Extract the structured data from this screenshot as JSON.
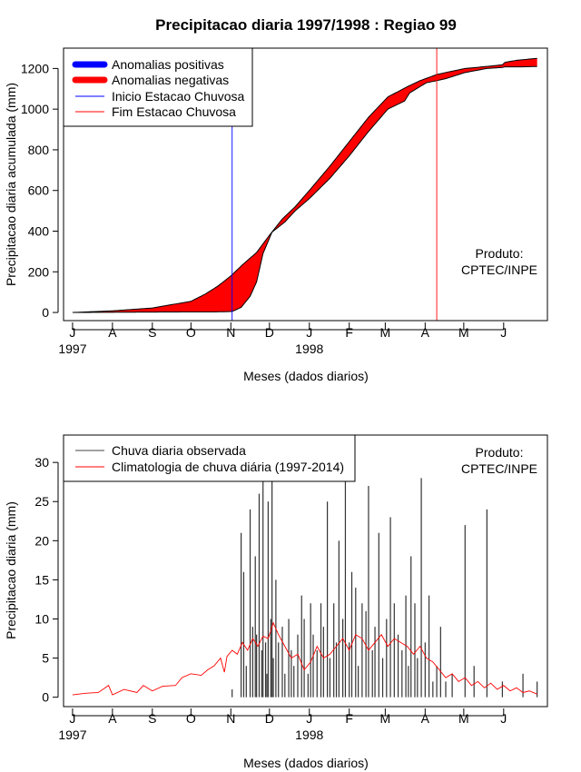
{
  "title": "Precipitacao diaria 1997/1998 : Regiao 99",
  "chart_data": [
    {
      "type": "area",
      "ylabel": "Precipitacao diaria acumulada (mm)",
      "xlabel": "Meses (dados diarios)",
      "x_ticks": [
        "J",
        "A",
        "S",
        "O",
        "N",
        "D",
        "J",
        "F",
        "M",
        "A",
        "M",
        "J"
      ],
      "year_labels": [
        {
          "label": "1997",
          "tick": 0
        },
        {
          "label": "1998",
          "tick": 6
        }
      ],
      "y_ticks": [
        0,
        200,
        400,
        600,
        800,
        1000,
        1200
      ],
      "ylim": [
        -40,
        1300
      ],
      "xlim_days": [
        -7,
        369
      ],
      "legend": [
        {
          "label": "Anomalias positivas",
          "color": "#0000ff",
          "style": "thick"
        },
        {
          "label": "Anomalias negativas",
          "color": "#ff0000",
          "style": "thick"
        },
        {
          "label": "Inicio Estacao Chuvosa",
          "color": "#0000ff",
          "style": "thin"
        },
        {
          "label": "Fim Estacao Chuvosa",
          "color": "#ff0000",
          "style": "thin"
        }
      ],
      "annotation": [
        "Produto:",
        "CPTEC/INPE"
      ],
      "season_start_day": 124,
      "season_end_day": 283,
      "observed_days": [
        0,
        31,
        62,
        92,
        110,
        120,
        124,
        131,
        138,
        143,
        148,
        155,
        165,
        173,
        184,
        200,
        215,
        230,
        245,
        258,
        262,
        275,
        283,
        290,
        305,
        322,
        334,
        336,
        350,
        361
      ],
      "observed_accum": [
        0,
        1,
        2,
        3,
        3,
        4,
        5,
        25,
        80,
        150,
        290,
        395,
        445,
        500,
        560,
        660,
        770,
        890,
        1000,
        1040,
        1080,
        1130,
        1140,
        1150,
        1180,
        1200,
        1205,
        1208,
        1208,
        1210
      ],
      "climatology_days": [
        0,
        31,
        62,
        92,
        103,
        113,
        123,
        133,
        143,
        153,
        163,
        173,
        184,
        200,
        215,
        230,
        245,
        260,
        270,
        283,
        290,
        305,
        322,
        334,
        336,
        345,
        361
      ],
      "climatology_accum": [
        0,
        8,
        22,
        55,
        90,
        130,
        180,
        240,
        295,
        380,
        460,
        520,
        600,
        720,
        840,
        960,
        1060,
        1110,
        1140,
        1170,
        1180,
        1200,
        1210,
        1218,
        1230,
        1240,
        1250
      ]
    },
    {
      "type": "line",
      "ylabel": "Precipitacao diaria (mm)",
      "xlabel": "Meses (dados diarios)",
      "x_ticks": [
        "J",
        "A",
        "S",
        "O",
        "N",
        "D",
        "J",
        "F",
        "M",
        "A",
        "M",
        "J"
      ],
      "year_labels": [
        {
          "label": "1997",
          "tick": 0
        },
        {
          "label": "1998",
          "tick": 6
        }
      ],
      "y_ticks": [
        0,
        5,
        10,
        15,
        20,
        25,
        30
      ],
      "ylim": [
        -1.2,
        33.5
      ],
      "xlim_days": [
        -7,
        369
      ],
      "annotation": [
        "Produto:",
        "CPTEC/INPE"
      ],
      "series": [
        {
          "name": "Chuva diaria observada",
          "color": "#000000",
          "style": "vertical-lines",
          "days": [
            124,
            131,
            133,
            135,
            138,
            140,
            142,
            143,
            145,
            147,
            148,
            150,
            151,
            152,
            154,
            155,
            156,
            158,
            160,
            163,
            165,
            168,
            170,
            172,
            175,
            178,
            180,
            183,
            185,
            187,
            190,
            193,
            195,
            198,
            200,
            203,
            205,
            207,
            210,
            212,
            215,
            217,
            220,
            222,
            225,
            228,
            230,
            233,
            235,
            238,
            241,
            244,
            247,
            250,
            253,
            256,
            259,
            261,
            263,
            266,
            268,
            271,
            274,
            277,
            280,
            283,
            286,
            290,
            295,
            305,
            312,
            322,
            334,
            350,
            361
          ],
          "values": [
            1,
            21,
            16,
            4,
            24,
            9,
            18,
            8,
            26,
            6,
            28,
            7,
            3,
            25,
            10,
            28,
            5,
            15,
            7,
            9,
            3,
            10,
            6,
            4,
            8,
            13,
            10,
            3,
            12,
            8,
            6,
            12,
            9,
            25,
            5,
            12,
            7,
            20,
            10,
            28,
            7,
            16,
            14,
            4,
            12,
            11,
            27,
            6,
            9,
            21,
            5,
            10,
            23,
            12,
            8,
            6,
            13,
            4,
            18,
            12,
            5,
            28,
            7,
            13,
            2,
            4,
            9,
            2,
            3,
            22,
            4,
            24,
            2,
            3,
            2
          ]
        },
        {
          "name": "Climatologia de chuva diária (1997-2014)",
          "color": "#ff0000",
          "style": "line",
          "days": [
            0,
            10,
            20,
            28,
            31,
            40,
            50,
            55,
            62,
            70,
            80,
            85,
            92,
            100,
            105,
            110,
            115,
            118,
            120,
            124,
            128,
            132,
            136,
            140,
            144,
            148,
            152,
            156,
            160,
            165,
            170,
            175,
            180,
            185,
            190,
            195,
            200,
            205,
            210,
            215,
            220,
            225,
            230,
            235,
            240,
            245,
            250,
            255,
            260,
            265,
            270,
            275,
            280,
            285,
            290,
            295,
            300,
            305,
            310,
            315,
            320,
            325,
            330,
            335,
            340,
            345,
            350,
            355,
            361
          ],
          "values": [
            0.3,
            0.5,
            0.6,
            1.5,
            0.3,
            1.0,
            0.6,
            1.5,
            0.8,
            1.4,
            1.5,
            2.5,
            3.0,
            2.8,
            3.5,
            4.0,
            5.0,
            3.2,
            5.2,
            6.0,
            5.5,
            7.0,
            6.0,
            7.5,
            6.5,
            7.8,
            7.5,
            9.5,
            8.0,
            6.5,
            5.0,
            5.5,
            3.5,
            4.5,
            6.5,
            5.0,
            5.5,
            6.5,
            7.5,
            6.0,
            8.0,
            7.5,
            6.0,
            7.0,
            8.0,
            6.5,
            7.5,
            7.0,
            6.5,
            5.5,
            6.5,
            5.0,
            4.5,
            3.5,
            2.5,
            3.0,
            2.0,
            2.5,
            1.5,
            2.0,
            1.2,
            1.8,
            1.0,
            1.5,
            0.8,
            1.2,
            0.6,
            0.8,
            0.4
          ]
        }
      ]
    }
  ]
}
